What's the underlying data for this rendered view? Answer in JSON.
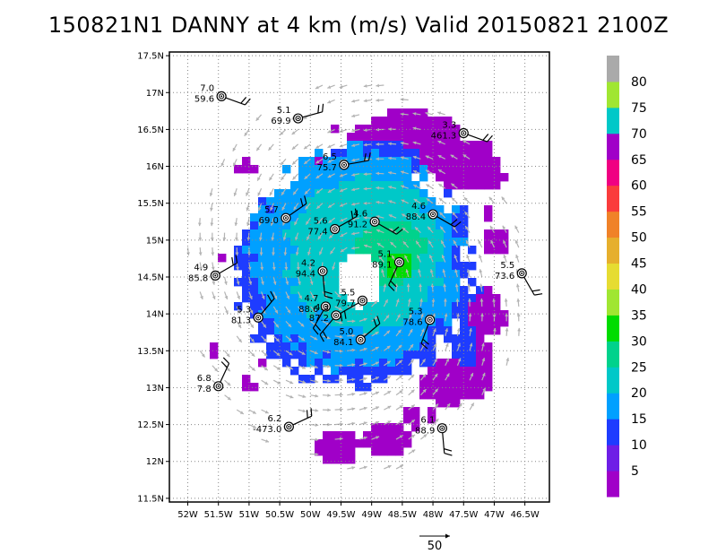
{
  "title": "150821N1 DANNY at 4 km (m/s) Valid 20150821 2100Z",
  "chart_data": {
    "type": "heatmap",
    "title": "150821N1 DANNY at 4 km (m/s) Valid 20150821 2100Z",
    "storm_center": {
      "lon": -49.25,
      "lat": 14.5
    },
    "xlim": [
      -52.3,
      -46.1
    ],
    "ylim": [
      11.45,
      17.55
    ],
    "x_ticks": [
      {
        "v": -52.0,
        "t": "52W"
      },
      {
        "v": -51.5,
        "t": "51.5W"
      },
      {
        "v": -51.0,
        "t": "51W"
      },
      {
        "v": -50.5,
        "t": "50.5W"
      },
      {
        "v": -50.0,
        "t": "50W"
      },
      {
        "v": -49.5,
        "t": "49.5W"
      },
      {
        "v": -49.0,
        "t": "49W"
      },
      {
        "v": -48.5,
        "t": "48.5W"
      },
      {
        "v": -48.0,
        "t": "48W"
      },
      {
        "v": -47.5,
        "t": "47.5W"
      },
      {
        "v": -47.0,
        "t": "47W"
      },
      {
        "v": -46.5,
        "t": "46.5W"
      }
    ],
    "y_ticks": [
      {
        "v": 11.5,
        "t": "11.5N"
      },
      {
        "v": 12.0,
        "t": "12N"
      },
      {
        "v": 12.5,
        "t": "12.5N"
      },
      {
        "v": 13.0,
        "t": "13N"
      },
      {
        "v": 13.5,
        "t": "13.5N"
      },
      {
        "v": 14.0,
        "t": "14N"
      },
      {
        "v": 14.5,
        "t": "14.5N"
      },
      {
        "v": 15.0,
        "t": "15N"
      },
      {
        "v": 15.5,
        "t": "15.5N"
      },
      {
        "v": 16.0,
        "t": "16N"
      },
      {
        "v": 16.5,
        "t": "16.5N"
      },
      {
        "v": 17.0,
        "t": "17N"
      },
      {
        "v": 17.5,
        "t": "17.5N"
      }
    ],
    "grid": true,
    "colorbar": {
      "labels": [
        "5",
        "10",
        "15",
        "20",
        "25",
        "30",
        "35",
        "40",
        "45",
        "50",
        "55",
        "60",
        "65",
        "70",
        "75",
        "80"
      ],
      "colors": [
        "#a000c8",
        "#6e1ee6",
        "#1e3cff",
        "#00a0ff",
        "#00c8c8",
        "#00d28c",
        "#00dc00",
        "#a0e632",
        "#e6dc32",
        "#e6af2d",
        "#f08228",
        "#fa3c3c",
        "#f00082",
        "#a000c8",
        "#00c8c8",
        "#a0e632",
        "#aaaaaa"
      ]
    },
    "reference_vector": {
      "label": "50",
      "value": 50
    },
    "field_regions": [
      {
        "lon": -49.25,
        "lat": 14.6,
        "rlon": 1.9,
        "rlat": 1.55,
        "level": 1
      },
      {
        "lon": -49.25,
        "lat": 14.75,
        "rlon": 1.7,
        "rlat": 1.45,
        "level": 2
      },
      {
        "lon": -49.1,
        "lat": 14.8,
        "rlon": 1.25,
        "rlat": 1.05,
        "level": 3
      },
      {
        "lon": -48.7,
        "lat": 14.85,
        "rlon": 0.55,
        "rlat": 0.45,
        "level": 4
      },
      {
        "lon": -48.55,
        "lat": 14.65,
        "rlon": 0.22,
        "rlat": 0.2,
        "level": 5
      }
    ],
    "eye": {
      "lon": -49.2,
      "lat": 14.45,
      "rlon": 0.35,
      "rlat": 0.35
    },
    "convective_patches": [
      {
        "lon": -48.4,
        "lat": 16.35,
        "rlon": 0.95,
        "rlat": 0.4,
        "level": 0
      },
      {
        "lon": -48.95,
        "lat": 16.05,
        "rlon": 0.8,
        "rlat": 0.3,
        "level": 1
      },
      {
        "lon": -47.55,
        "lat": 16.05,
        "rlon": 0.6,
        "rlat": 0.35,
        "level": 0
      },
      {
        "lon": -47.1,
        "lat": 15.85,
        "rlon": 0.3,
        "rlat": 0.18,
        "level": 0
      },
      {
        "lon": -47.15,
        "lat": 14.0,
        "rlon": 0.35,
        "rlat": 0.35,
        "level": 0
      },
      {
        "lon": -47.35,
        "lat": 13.3,
        "rlon": 0.35,
        "rlat": 0.45,
        "level": 0
      },
      {
        "lon": -47.8,
        "lat": 13.05,
        "rlon": 0.45,
        "rlat": 0.3,
        "level": 0
      },
      {
        "lon": -47.45,
        "lat": 13.55,
        "rlon": 0.2,
        "rlat": 0.25,
        "level": 1
      },
      {
        "lon": -47.0,
        "lat": 15.0,
        "rlon": 0.22,
        "rlat": 0.18,
        "level": 0
      },
      {
        "lon": -47.1,
        "lat": 15.35,
        "rlon": 0.1,
        "rlat": 0.08,
        "level": 0
      },
      {
        "lon": -48.75,
        "lat": 12.3,
        "rlon": 0.45,
        "rlat": 0.2,
        "level": 0
      },
      {
        "lon": -49.55,
        "lat": 12.2,
        "rlon": 0.35,
        "rlat": 0.2,
        "level": 0
      },
      {
        "lon": -48.35,
        "lat": 12.6,
        "rlon": 0.15,
        "rlat": 0.15,
        "level": 0
      },
      {
        "lon": -50.8,
        "lat": 14.85,
        "rlon": 0.15,
        "rlat": 0.15,
        "level": 1
      },
      {
        "lon": -50.7,
        "lat": 14.15,
        "rlon": 0.18,
        "rlat": 0.12,
        "level": 1
      },
      {
        "lon": -50.9,
        "lat": 14.6,
        "rlon": 0.1,
        "rlat": 0.1,
        "level": 0
      },
      {
        "lon": -49.85,
        "lat": 16.0,
        "rlon": 0.18,
        "rlat": 0.12,
        "level": 0
      },
      {
        "lon": -50.55,
        "lat": 14.0,
        "rlon": 0.12,
        "rlat": 0.12,
        "level": 0
      },
      {
        "lon": -50.7,
        "lat": 15.05,
        "rlon": 0.1,
        "rlat": 0.1,
        "level": 0
      },
      {
        "lon": -48.55,
        "lat": 13.55,
        "rlon": 0.15,
        "rlat": 0.15,
        "level": 0
      },
      {
        "lon": -48.3,
        "lat": 13.8,
        "rlon": 0.12,
        "rlat": 0.1,
        "level": 0
      },
      {
        "lon": -51.05,
        "lat": 16.0,
        "rlon": 0.15,
        "rlat": 0.1,
        "level": 0
      },
      {
        "lon": -51.6,
        "lat": 13.5,
        "rlon": 0.08,
        "rlat": 0.08,
        "level": 0
      },
      {
        "lon": -51.0,
        "lat": 13.05,
        "rlon": 0.1,
        "rlat": 0.1,
        "level": 0
      },
      {
        "lon": -50.75,
        "lat": 13.35,
        "rlon": 0.06,
        "rlat": 0.06,
        "level": 0
      },
      {
        "lon": -49.65,
        "lat": 16.55,
        "rlon": 0.06,
        "rlat": 0.1,
        "level": 0
      },
      {
        "lon": -49.95,
        "lat": 15.55,
        "rlon": 0.08,
        "rlat": 0.08,
        "level": 0
      },
      {
        "lon": -51.45,
        "lat": 14.8,
        "rlon": 0.06,
        "rlat": 0.06,
        "level": 0
      },
      {
        "lon": -48.05,
        "lat": 12.65,
        "rlon": 0.08,
        "rlat": 0.08,
        "level": 0
      }
    ],
    "stations": [
      {
        "lon": -51.45,
        "lat": 16.95,
        "top": "7.0",
        "bot": "59.6",
        "dir": 110
      },
      {
        "lon": -50.2,
        "lat": 16.65,
        "top": "5.1",
        "bot": "69.9",
        "dir": 75
      },
      {
        "lon": -49.45,
        "lat": 16.02,
        "top": "6.5",
        "bot": "75.7",
        "dir": 80
      },
      {
        "lon": -47.5,
        "lat": 16.45,
        "top": "3.3",
        "bot": "461.3",
        "dir": 110
      },
      {
        "lon": -50.4,
        "lat": 15.3,
        "top": "5.7",
        "bot": "69.0",
        "dir": 55
      },
      {
        "lon": -49.6,
        "lat": 15.15,
        "top": "5.6",
        "bot": "77.4",
        "dir": 60
      },
      {
        "lon": -48.95,
        "lat": 15.25,
        "top": "4.6",
        "bot": "91.2",
        "dir": 120
      },
      {
        "lon": -48.0,
        "lat": 15.35,
        "top": "4.6",
        "bot": "88.4",
        "dir": 120
      },
      {
        "lon": -51.55,
        "lat": 14.52,
        "top": "4.9",
        "bot": "85.8",
        "dir": 60
      },
      {
        "lon": -49.8,
        "lat": 14.58,
        "top": "4.2",
        "bot": "94.4",
        "dir": 175
      },
      {
        "lon": -48.55,
        "lat": 14.7,
        "top": "5.1",
        "bot": "89.1",
        "dir": 205
      },
      {
        "lon": -46.55,
        "lat": 14.55,
        "top": "5.5",
        "bot": "73.6",
        "dir": 150
      },
      {
        "lon": -49.75,
        "lat": 14.1,
        "top": "4.7",
        "bot": "88.6",
        "dir": 210
      },
      {
        "lon": -49.15,
        "lat": 14.18,
        "top": "5.5",
        "bot": "79.7",
        "dir": 240
      },
      {
        "lon": -49.58,
        "lat": 13.98,
        "top": "4.3",
        "bot": "87.2",
        "dir": 220
      },
      {
        "lon": -50.85,
        "lat": 13.95,
        "top": "5.3",
        "bot": "81.3",
        "dir": 40
      },
      {
        "lon": -48.05,
        "lat": 13.92,
        "top": "5.3",
        "bot": "78.6",
        "dir": 200
      },
      {
        "lon": -49.18,
        "lat": 13.65,
        "top": "5.0",
        "bot": "84.1",
        "dir": 50
      },
      {
        "lon": -51.5,
        "lat": 13.02,
        "top": "6.8",
        "bot": "7.8",
        "dir": 25
      },
      {
        "lon": -50.35,
        "lat": 12.47,
        "top": "6.2",
        "bot": "-473.0",
        "dir": 65
      },
      {
        "lon": -47.85,
        "lat": 12.45,
        "top": "6.1",
        "bot": "88.9",
        "dir": 175
      }
    ]
  }
}
